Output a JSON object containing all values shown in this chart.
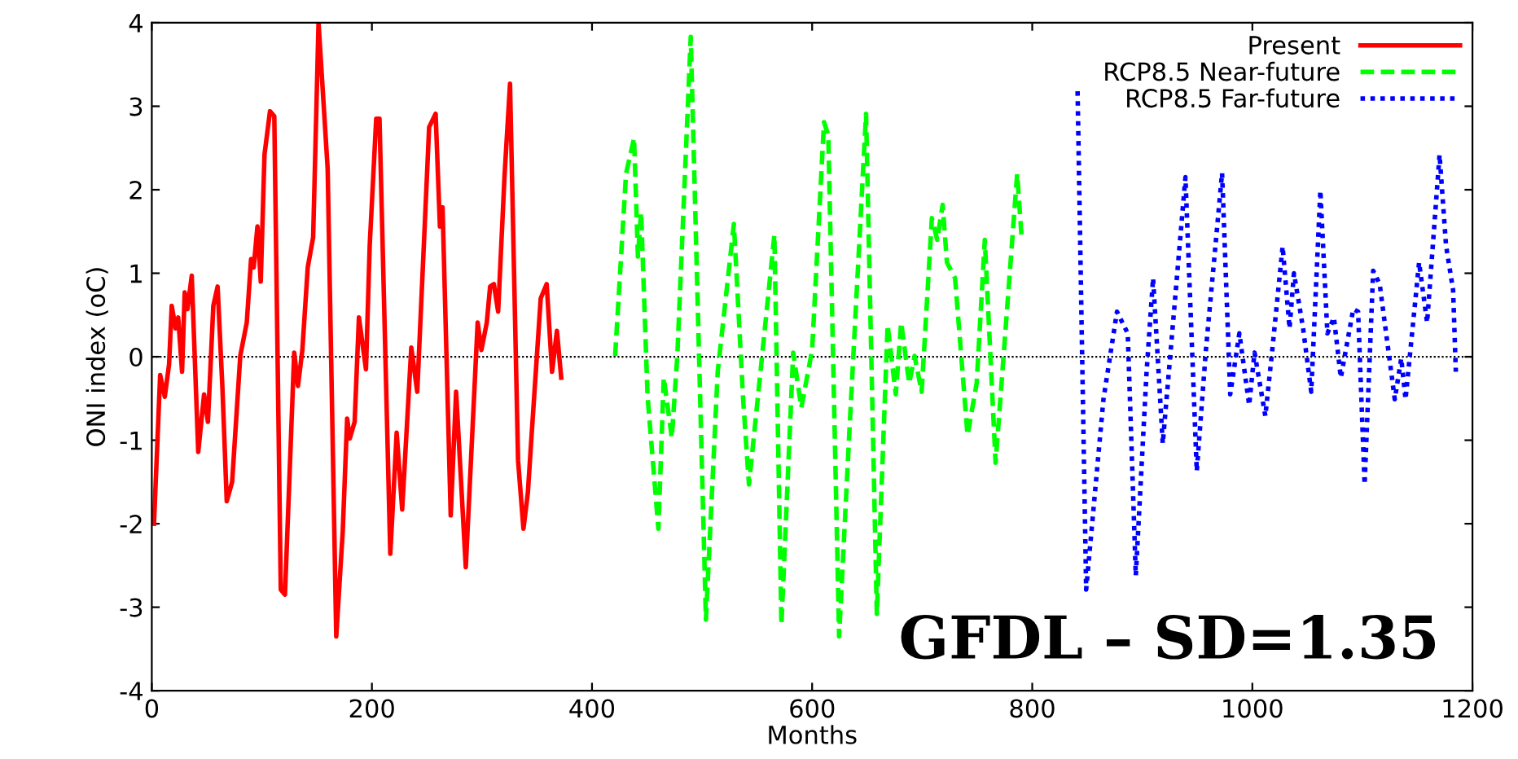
{
  "chart_data": {
    "type": "line",
    "xlabel": "Months",
    "ylabel": "ONI index (oC)",
    "xlim": [
      0,
      1200
    ],
    "xticks": [
      0,
      200,
      400,
      600,
      800,
      1000,
      1200
    ],
    "ylim": [
      -4,
      4
    ],
    "yticks": [
      -4,
      -3,
      -2,
      -1,
      0,
      1,
      2,
      3,
      4
    ],
    "legend": "top right",
    "grid": false,
    "ref_lines": [
      {
        "axis": "y",
        "value": 0,
        "color": "#000000",
        "line_style": "dotted"
      }
    ],
    "annotations": [
      "GFDL – SD=1.35"
    ],
    "series": [
      {
        "name": "Present",
        "color": "#ff0000",
        "line_style": "solid",
        "x": [
          2,
          7.6,
          11.8,
          15.7,
          18.1,
          21.6,
          24,
          27.5,
          29.9,
          32.4,
          36.3,
          42.2,
          47.5,
          51,
          55.9,
          59.8,
          64.2,
          68.1,
          73,
          80.4,
          86.3,
          90.2,
          92.6,
          96,
          99,
          102.4,
          107.4,
          111.3,
          117.2,
          121,
          129.4,
          132.8,
          136.8,
          141.7,
          146.6,
          151.5,
          159.8,
          167.6,
          173.5,
          177.5,
          179.9,
          184.3,
          188.2,
          194.6,
          198,
          203.9,
          206.9,
          216.7,
          222.5,
          227.5,
          235.8,
          241.2,
          252,
          257.9,
          261.8,
          264.2,
          271.6,
          276.5,
          285.3,
          296.1,
          299.5,
          304.4,
          307.4,
          310.8,
          314.7,
          320.6,
          325.5,
          332.8,
          337.7,
          341.7,
          345.1,
          353.4,
          358.8,
          363.7,
          368.1,
          372
        ],
        "values": [
          -2.0,
          -0.22,
          -0.48,
          -0.09,
          0.61,
          0.34,
          0.47,
          -0.18,
          0.77,
          0.57,
          0.97,
          -1.14,
          -0.45,
          -0.78,
          0.61,
          0.84,
          -0.38,
          -1.73,
          -1.5,
          0.01,
          0.41,
          1.17,
          1.07,
          1.56,
          0.9,
          2.42,
          2.94,
          2.88,
          -2.79,
          -2.85,
          0.05,
          -0.35,
          0.08,
          1.07,
          1.43,
          4.0,
          2.25,
          -3.35,
          -2.09,
          -0.74,
          -0.98,
          -0.78,
          0.47,
          -0.15,
          1.33,
          2.85,
          2.85,
          -2.36,
          -0.91,
          -1.83,
          0.11,
          -0.42,
          2.75,
          2.91,
          1.56,
          1.79,
          -1.9,
          -0.42,
          -2.52,
          0.41,
          0.08,
          0.41,
          0.84,
          0.87,
          0.54,
          2.19,
          3.27,
          -1.24,
          -2.06,
          -1.63,
          -0.94,
          0.7,
          0.87,
          -0.18,
          0.31,
          -0.25
        ]
      },
      {
        "name": "RCP8.5 Near-future",
        "color": "#00ff00",
        "line_style": "dashed",
        "x": [
          421,
          430.9,
          438.2,
          441.7,
          444.6,
          450.5,
          460.3,
          465.2,
          472.5,
          477.5,
          489.7,
          503.5,
          514.2,
          528.9,
          537.3,
          542.6,
          551,
          565.7,
          572.1,
          582.8,
          590.2,
          600,
          610.8,
          614.7,
          624.5,
          634.3,
          649,
          658.8,
          668.6,
          676,
          680.9,
          688.2,
          693.1,
          699.5,
          708.8,
          713.7,
          718.6,
          722.5,
          729.9,
          741.2,
          749.5,
          756.9,
          766.7,
          775.5,
          786.3,
          790.2
        ],
        "values": [
          0.01,
          2.19,
          2.62,
          1.2,
          1.73,
          -0.48,
          -2.06,
          -0.25,
          -0.97,
          0.01,
          3.83,
          -3.15,
          -0.18,
          1.59,
          -0.51,
          -1.53,
          -0.45,
          1.46,
          -3.21,
          0.05,
          -0.61,
          0.08,
          2.81,
          2.65,
          -3.35,
          -0.78,
          2.91,
          -3.08,
          0.38,
          -0.45,
          0.41,
          -0.32,
          0.01,
          -0.42,
          1.66,
          1.4,
          1.82,
          1.13,
          0.94,
          -0.94,
          -0.32,
          1.4,
          -1.27,
          0.28,
          2.19,
          1.46
        ]
      },
      {
        "name": "RCP8.5 Far-future",
        "color": "#0000ff",
        "line_style": "dotted",
        "x": [
          841.2,
          849,
          864.7,
          877,
          886.8,
          894.1,
          903.9,
          909.8,
          918.6,
          939.2,
          949.5,
          957.8,
          972.5,
          979.9,
          988.2,
          997.1,
          1002,
          1011.8,
          1018.1,
          1027.5,
          1033.8,
          1037.8,
          1046.1,
          1053.5,
          1061.8,
          1068.2,
          1074.1,
          1080.4,
          1091.7,
          1096.1,
          1102,
          1109.8,
          1115.7,
          1129.4,
          1135.3,
          1139.2,
          1151.5,
          1158.8,
          1170.1,
          1176,
          1182.4,
          1184.9
        ],
        "values": [
          3.18,
          -2.79,
          -0.51,
          0.54,
          0.28,
          -2.62,
          -0.18,
          0.94,
          -1.04,
          2.15,
          -1.37,
          0.08,
          2.2,
          -0.45,
          0.28,
          -0.58,
          0.05,
          -0.71,
          0.08,
          1.32,
          0.34,
          1.0,
          0.34,
          -0.42,
          1.99,
          0.28,
          0.47,
          -0.25,
          0.57,
          0.54,
          -1.53,
          1.03,
          0.87,
          -0.51,
          -0.02,
          -0.51,
          1.13,
          0.41,
          2.42,
          1.33,
          0.8,
          -0.18
        ]
      }
    ]
  }
}
